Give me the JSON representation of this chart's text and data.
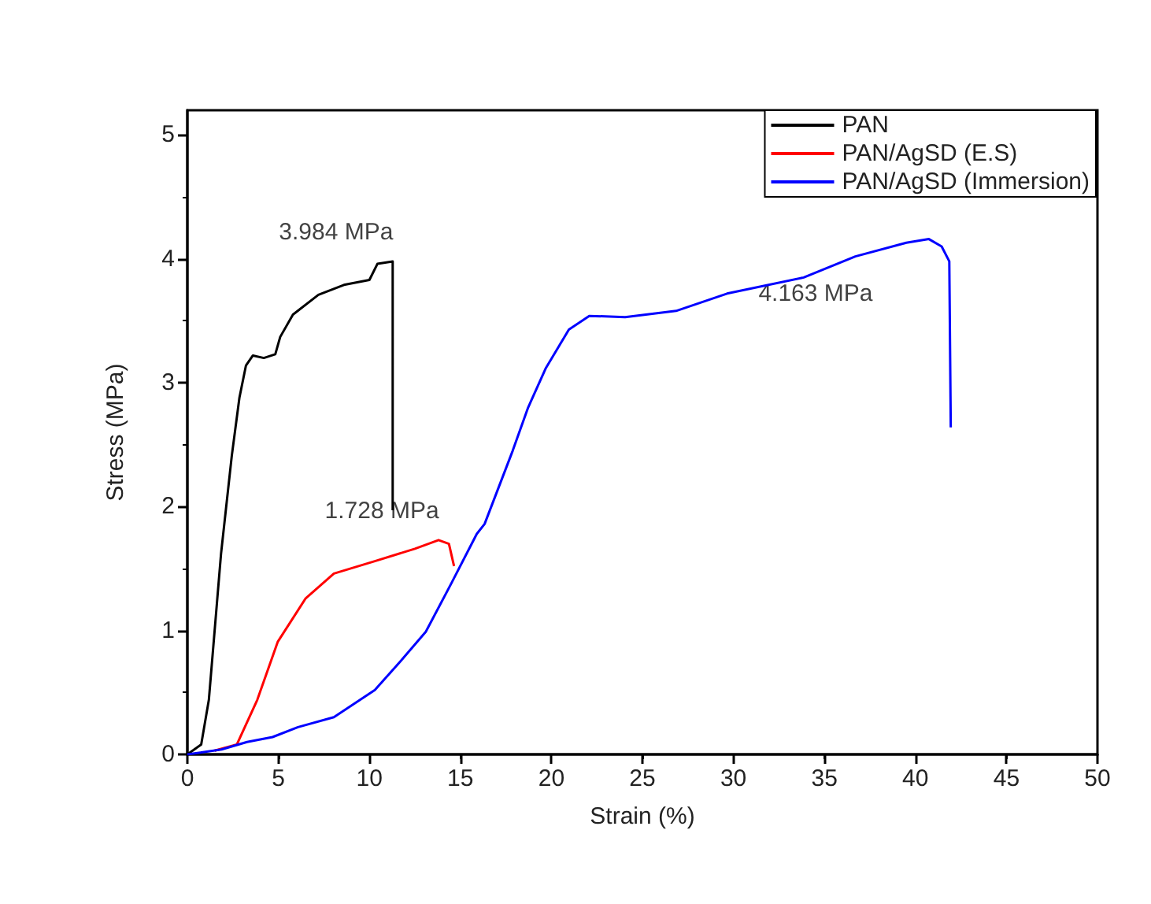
{
  "chart_data": {
    "type": "line",
    "xlabel": "Strain (%)",
    "ylabel": "Stress (MPa)",
    "xlim": [
      0,
      50
    ],
    "xticks": [
      0,
      5,
      10,
      15,
      20,
      25,
      30,
      35,
      40,
      45,
      50
    ],
    "ylim": [
      0,
      5.2
    ],
    "yticks": [
      0,
      1,
      2,
      3,
      4,
      5
    ],
    "grid": false,
    "legend": "top right",
    "marker": "none",
    "line_style": "solid",
    "series": [
      {
        "name": "PAN",
        "color": "#000000",
        "x": [
          0,
          0.76,
          1.18,
          1.85,
          2.44,
          2.86,
          3.22,
          3.6,
          4.2,
          4.83,
          5.1,
          5.8,
          7.2,
          8.6,
          10.0,
          10.44,
          11.28,
          11.28
        ],
        "values": [
          0,
          0.08,
          0.44,
          1.62,
          2.41,
          2.88,
          3.14,
          3.22,
          3.2,
          3.23,
          3.37,
          3.55,
          3.71,
          3.79,
          3.83,
          3.96,
          3.98,
          1.97
        ]
      },
      {
        "name": "PAN/AgSD (E.S)",
        "color": "#ff0000",
        "x": [
          1.5,
          2.72,
          3.84,
          4.97,
          6.5,
          8.05,
          10.3,
          12.5,
          13.8,
          14.37,
          14.65
        ],
        "values": [
          0.03,
          0.08,
          0.44,
          0.91,
          1.26,
          1.46,
          1.56,
          1.66,
          1.73,
          1.7,
          1.52
        ]
      },
      {
        "name": "PAN/AgSD (Immersion)",
        "color": "#0000ff",
        "x": [
          0,
          1.88,
          3.28,
          4.68,
          6.08,
          8.05,
          10.3,
          11.7,
          13.1,
          14.5,
          15.9,
          16.33,
          17.87,
          18.72,
          19.7,
          20.96,
          22.08,
          24.05,
          26.85,
          29.65,
          33.86,
          36.7,
          39.5,
          40.74,
          41.44,
          41.86,
          41.94
        ],
        "values": [
          0,
          0.04,
          0.1,
          0.14,
          0.22,
          0.3,
          0.52,
          0.75,
          0.99,
          1.38,
          1.78,
          1.86,
          2.45,
          2.8,
          3.12,
          3.43,
          3.54,
          3.53,
          3.58,
          3.72,
          3.85,
          4.02,
          4.13,
          4.16,
          4.1,
          3.98,
          2.64
        ]
      }
    ],
    "annotations": [
      {
        "text": "3.984 MPa",
        "x": 11.28,
        "y": 3.98
      },
      {
        "text": "1.728 MPa",
        "x": 13.8,
        "y": 1.73
      },
      {
        "text": "4.163 MPa",
        "x": 40.74,
        "y": 4.16
      }
    ]
  }
}
